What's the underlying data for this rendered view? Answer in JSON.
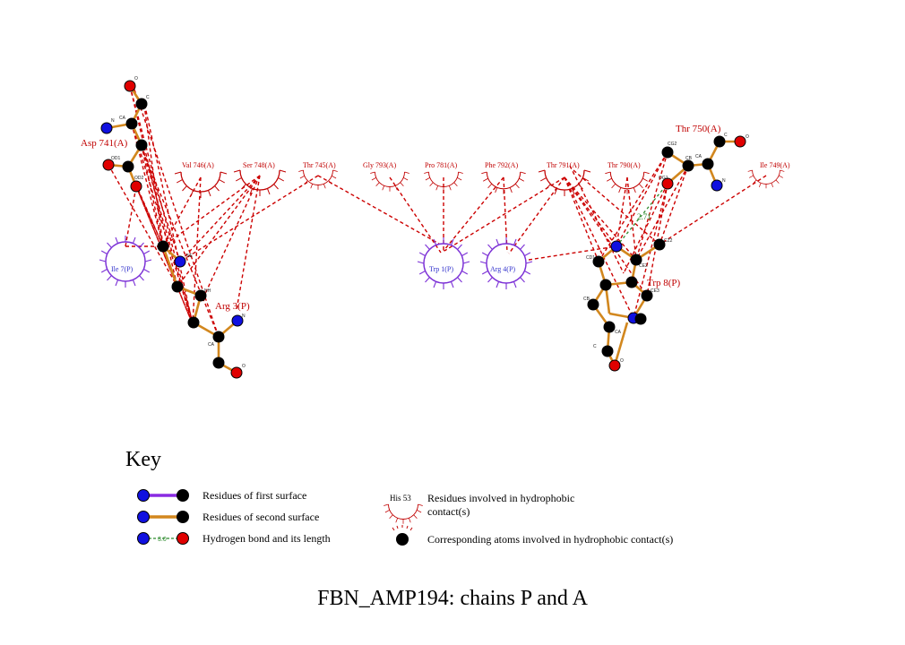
{
  "title": "FBN_AMP194: chains P and A",
  "key": {
    "title": "Key",
    "items": [
      {
        "id": "first",
        "label": "Residues of first surface"
      },
      {
        "id": "second",
        "label": "Residues of second surface"
      },
      {
        "id": "hbond",
        "label": "Hydrogen bond and its length",
        "sample_length": "3.0"
      },
      {
        "id": "hydrophobic",
        "label": "Residues involved in hydrophobic contact(s)",
        "sample_residue": "His 53"
      },
      {
        "id": "atoms",
        "label": "Corresponding atoms involved in hydrophobic contact(s)"
      }
    ]
  },
  "colors": {
    "first_surface": "#8a2be2",
    "second_surface": "#d2871e",
    "hydrophobic": "#c00000",
    "hbond": "#2e8b2e",
    "nitrogen": "#1010e0",
    "oxygen": "#e00000",
    "carbon": "#000000",
    "chain_p_label": "#3333cc",
    "chain_a_label": "#c00000"
  },
  "hbond_length": "2.71",
  "residues": {
    "asp741": "Asp 741(A)",
    "arg3": "Arg 3(P)",
    "thr750": "Thr 750(A)",
    "trp8": "Trp 8(P)",
    "val746": "Val 746(A)",
    "ser748": "Ser 748(A)",
    "thr745": "Thr 745(A)",
    "gly793": "Gly 793(A)",
    "pro781": "Pro 781(A)",
    "phe792": "Phe 792(A)",
    "thr791": "Thr 791(A)",
    "thr790": "Thr 790(A)",
    "ile749": "Ile 749(A)",
    "ile7": "Ile 7(P)",
    "trp1": "Trp 1(P)",
    "arg4": "Arg 4(P)"
  }
}
